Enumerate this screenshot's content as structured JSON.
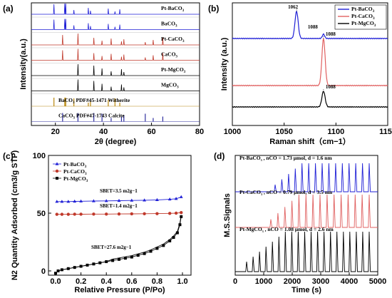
{
  "chart_data": [
    {
      "panel": "(a)",
      "type": "line",
      "xlabel": "2θ (degree)",
      "ylabel": "Intensity(a.u.)",
      "xlim": [
        10,
        80
      ],
      "xticks": [
        "20",
        "40",
        "60",
        "80"
      ],
      "series": [
        {
          "name": "Pt-BaCO3",
          "color": "#1f1fd6"
        },
        {
          "name": "BaCO3",
          "color": "#1f1fd6"
        },
        {
          "name": "Pt-CaCO3",
          "color": "#c0392b"
        },
        {
          "name": "CaCO3",
          "color": "#c0392b"
        },
        {
          "name": "Pt-MgCO3",
          "color": "#000000"
        },
        {
          "name": "MgCO3",
          "color": "#000000"
        },
        {
          "name": "BaCO3 PDF#45-1471 Witherite",
          "color": "#b8860b"
        },
        {
          "name": "CaCO3 PDF#47-1743 Calcite",
          "color": "#2f2f9f"
        }
      ],
      "peaks": {
        "ba": [
          19.4,
          23.9,
          24.3,
          27.7,
          33.7,
          34.6,
          42.0,
          44.8,
          46.8
        ],
        "ca": [
          23.0,
          29.4,
          36.0,
          39.4,
          43.2,
          47.5,
          48.5,
          57.4,
          60.7,
          64.7
        ],
        "mg": [
          29.4,
          36.0,
          39.4,
          43.2,
          47.5,
          48.5
        ]
      }
    },
    {
      "panel": "(b)",
      "type": "line",
      "xlabel": "Raman shift（cm−1）",
      "ylabel": "Intensity (a.u.)",
      "xlim": [
        1000,
        1150
      ],
      "xticks": [
        "1000",
        "1050",
        "1100",
        "1150"
      ],
      "series": [
        {
          "name": "Pt-BaCO3",
          "color": "#1f1fd6",
          "peak": 1062,
          "peak_label": "1062",
          "peak2_label": "1088"
        },
        {
          "name": "Pt-CaCO3",
          "color": "#e06060",
          "peak": 1088,
          "peak_label": "1088"
        },
        {
          "name": "Pt-MgCO3",
          "color": "#000000",
          "peak": 1088,
          "peak_label": "1088"
        }
      ]
    },
    {
      "panel": "(c)",
      "type": "scatter",
      "xlabel": "Relative Pressure (P/Po)",
      "ylabel": "N2 Quantity Adsorbed (cm3/g STP)",
      "xlim": [
        0.0,
        1.0
      ],
      "ylim": [
        0,
        100
      ],
      "xticks": [
        "0.0",
        "0.2",
        "0.4",
        "0.6",
        "0.8",
        "1.0"
      ],
      "yticks": [
        "0",
        "50",
        "100"
      ],
      "series": [
        {
          "name": "Pt-BaCO3",
          "color": "#1f1fd6",
          "marker": "triangle",
          "sbet": "SBET=3.5 m2g−1",
          "x": [
            0.01,
            0.05,
            0.1,
            0.15,
            0.2,
            0.3,
            0.4,
            0.5,
            0.6,
            0.7,
            0.8,
            0.9,
            0.95,
            0.99
          ],
          "y": [
            60,
            60,
            60,
            60.2,
            60.3,
            60.5,
            60.6,
            60.8,
            61,
            61.2,
            61.5,
            62,
            62.5,
            64
          ]
        },
        {
          "name": "Pt-CaCO3",
          "color": "#c0392b",
          "marker": "circle",
          "sbet": "SBET=1.4 m2g−1",
          "x": [
            0.01,
            0.05,
            0.1,
            0.15,
            0.2,
            0.3,
            0.4,
            0.5,
            0.6,
            0.7,
            0.8,
            0.9,
            0.95,
            0.99
          ],
          "y": [
            49,
            49,
            49,
            49.1,
            49.1,
            49.2,
            49.2,
            49.3,
            49.4,
            49.5,
            49.6,
            49.8,
            50,
            50.5
          ]
        },
        {
          "name": "Pt-MgCO3",
          "color": "#000000",
          "marker": "square",
          "sbet": "SBET=27.6 m2g−1",
          "x": [
            0.0,
            0.02,
            0.05,
            0.1,
            0.15,
            0.2,
            0.25,
            0.3,
            0.35,
            0.4,
            0.45,
            0.5,
            0.55,
            0.6,
            0.65,
            0.7,
            0.75,
            0.8,
            0.85,
            0.9,
            0.93,
            0.96,
            0.98,
            0.99
          ],
          "y": [
            -2,
            0,
            1,
            2,
            3,
            4,
            5,
            6,
            7,
            8,
            9,
            10,
            11,
            12,
            13.5,
            15,
            17,
            19.5,
            22,
            26,
            29,
            33,
            40,
            47
          ]
        }
      ]
    },
    {
      "panel": "(d)",
      "type": "line",
      "xlabel": "Time (s)",
      "ylabel": "M.S.Signals",
      "xlim": [
        0,
        5000
      ],
      "xticks": [
        "0",
        "1000",
        "2000",
        "3000",
        "4000",
        "5000"
      ],
      "series": [
        {
          "name": "Pt-BaCO3",
          "label": "Pt-BaCO3 , nCO = 1.73 μmol, d = 1.6 nm",
          "color": "#1f1fd6"
        },
        {
          "name": "Pt-CaCO3",
          "label": "Pt-CaCO3 , nCO = 0.79 μmol, d = 3.5 nm",
          "color": "#e06060"
        },
        {
          "name": "Pt-MgCO3",
          "label": "Pt-MgCO3 , nCO = 1.08 μmol, d = 2.6 nm",
          "color": "#000000"
        }
      ]
    }
  ]
}
